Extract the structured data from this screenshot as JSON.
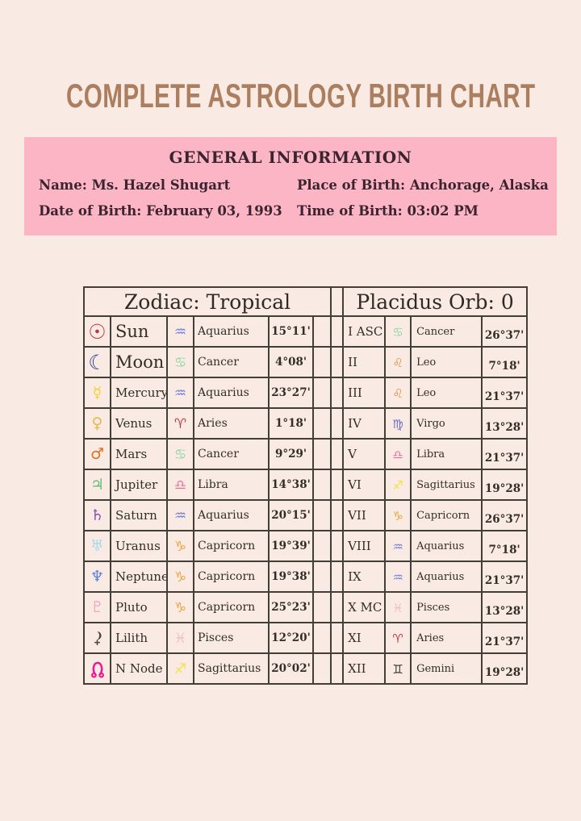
{
  "page": {
    "title": "COMPLETE ASTROLOGY BIRTH CHART",
    "background_color": "#f9ebe3",
    "title_color": "#aa7e5e"
  },
  "general_info": {
    "heading": "GENERAL INFORMATION",
    "panel_color": "#fbb5c4",
    "fields": {
      "name": "Name: Ms. Hazel Shugart",
      "date_of_birth": "Date of Birth: February 03, 1993",
      "place_of_birth": "Place of Birth: Anchorage, Alaska",
      "time_of_birth": "Time of Birth: 03:02 PM"
    }
  },
  "planet_table": {
    "header": "Zodiac: Tropical",
    "rows": [
      {
        "planet": "Sun",
        "planet_icon": "sun",
        "sign": "Aquarius",
        "sign_icon": "aquarius",
        "degrees": "15°11'"
      },
      {
        "planet": "Moon",
        "planet_icon": "moon",
        "sign": "Cancer",
        "sign_icon": "cancer",
        "degrees": "4°08'"
      },
      {
        "planet": "Mercury",
        "planet_icon": "mercury",
        "sign": "Aquarius",
        "sign_icon": "aquarius",
        "degrees": "23°27'"
      },
      {
        "planet": "Venus",
        "planet_icon": "venus",
        "sign": "Aries",
        "sign_icon": "aries",
        "degrees": "1°18'"
      },
      {
        "planet": "Mars",
        "planet_icon": "mars",
        "sign": "Cancer",
        "sign_icon": "cancer",
        "degrees": "9°29'"
      },
      {
        "planet": "Jupiter",
        "planet_icon": "jupiter",
        "sign": "Libra",
        "sign_icon": "libra",
        "degrees": "14°38'"
      },
      {
        "planet": "Saturn",
        "planet_icon": "saturn",
        "sign": "Aquarius",
        "sign_icon": "aquarius",
        "degrees": "20°15'"
      },
      {
        "planet": "Uranus",
        "planet_icon": "uranus",
        "sign": "Capricorn",
        "sign_icon": "capricorn",
        "degrees": "19°39'"
      },
      {
        "planet": "Neptune",
        "planet_icon": "neptune",
        "sign": "Capricorn",
        "sign_icon": "capricorn",
        "degrees": "19°38'"
      },
      {
        "planet": "Pluto",
        "planet_icon": "pluto",
        "sign": "Capricorn",
        "sign_icon": "capricorn",
        "degrees": "25°23'"
      },
      {
        "planet": "Lilith",
        "planet_icon": "lilith",
        "sign": "Pisces",
        "sign_icon": "pisces",
        "degrees": "12°20'"
      },
      {
        "planet": "N Node",
        "planet_icon": "n_node",
        "sign": "Sagittarius",
        "sign_icon": "sagittarius",
        "degrees": "20°02'"
      }
    ]
  },
  "house_table": {
    "header": "Placidus Orb: 0",
    "rows": [
      {
        "house": "I ASC",
        "sign": "Cancer",
        "sign_icon": "cancer",
        "degrees": "26°37'"
      },
      {
        "house": "II",
        "sign": "Leo",
        "sign_icon": "leo",
        "degrees": "7°18'"
      },
      {
        "house": "III",
        "sign": "Leo",
        "sign_icon": "leo",
        "degrees": "21°37'"
      },
      {
        "house": "IV",
        "sign": "Virgo",
        "sign_icon": "virgo",
        "degrees": "13°28'"
      },
      {
        "house": "V",
        "sign": "Libra",
        "sign_icon": "libra",
        "degrees": "21°37'"
      },
      {
        "house": "VI",
        "sign": "Sagittarius",
        "sign_icon": "sagittarius",
        "degrees": "19°28'"
      },
      {
        "house": "VII",
        "sign": "Capricorn",
        "sign_icon": "capricorn",
        "degrees": "26°37'"
      },
      {
        "house": "VIII",
        "sign": "Aquarius",
        "sign_icon": "aquarius",
        "degrees": "7°18'"
      },
      {
        "house": "IX",
        "sign": "Aquarius",
        "sign_icon": "aquarius",
        "degrees": "21°37'"
      },
      {
        "house": "X MC",
        "sign": "Pisces",
        "sign_icon": "pisces",
        "degrees": "13°28'"
      },
      {
        "house": "XI",
        "sign": "Aries",
        "sign_icon": "aries",
        "degrees": "21°37'"
      },
      {
        "house": "XII",
        "sign": "Gemini",
        "sign_icon": "gemini",
        "degrees": "19°28'"
      }
    ]
  },
  "icons": {
    "sun": {
      "glyph": "☉",
      "color": "#b5383b"
    },
    "moon": {
      "glyph": "☾",
      "color": "#2e3f8f"
    },
    "mercury": {
      "glyph": "☿",
      "color": "#f2d22e"
    },
    "venus": {
      "glyph": "♀",
      "color": "#e6b94d"
    },
    "mars": {
      "glyph": "♂",
      "color": "#e0701f"
    },
    "jupiter": {
      "glyph": "♃",
      "color": "#66bd7a"
    },
    "saturn": {
      "glyph": "♄",
      "color": "#8f4fb5"
    },
    "uranus": {
      "glyph": "♅",
      "color": "#a5d9ec"
    },
    "neptune": {
      "glyph": "♆",
      "color": "#5b80d6"
    },
    "pluto": {
      "glyph": "♇",
      "color": "#f2a9c4"
    },
    "lilith": {
      "glyph": "⚸",
      "color": "#49463f"
    },
    "n_node": {
      "glyph": "☊",
      "color": "#ec1a8e"
    },
    "aries": {
      "glyph": "♈",
      "color": "#c43a3a"
    },
    "gemini": {
      "glyph": "♊",
      "color": "#3a3633"
    },
    "cancer": {
      "glyph": "♋",
      "color": "#90d6a4"
    },
    "leo": {
      "glyph": "♌",
      "color": "#e89040"
    },
    "virgo": {
      "glyph": "♍",
      "color": "#6f6cc0"
    },
    "libra": {
      "glyph": "♎",
      "color": "#f06a9e"
    },
    "sagittarius": {
      "glyph": "♐",
      "color": "#f2e242"
    },
    "capricorn": {
      "glyph": "♑",
      "color": "#e8a63e"
    },
    "aquarius": {
      "glyph": "♒",
      "color": "#6e7fd8"
    },
    "pisces": {
      "glyph": "♓",
      "color": "#f2bccb"
    }
  }
}
